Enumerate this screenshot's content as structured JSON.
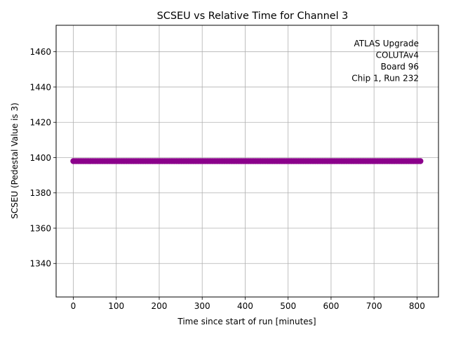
{
  "chart_data": {
    "type": "scatter",
    "title": "SCSEU vs Relative Time for Channel 3",
    "xlabel": "Time since start of run [minutes]",
    "ylabel": "SCSEU (Pedestal Value is 3)",
    "xlim": [
      -40,
      850
    ],
    "ylim": [
      1321,
      1475
    ],
    "xticks": [
      0,
      100,
      200,
      300,
      400,
      500,
      600,
      700,
      800
    ],
    "yticks": [
      1340,
      1360,
      1380,
      1400,
      1420,
      1440,
      1460
    ],
    "grid": true,
    "marker_color": "#8b008b",
    "series": [
      {
        "x_start": 0,
        "x_end": 808,
        "x_step": 4,
        "y": 1398
      }
    ],
    "annotation": [
      "ATLAS Upgrade",
      "COLUTAv4",
      "Board 96",
      "Chip 1, Run 232"
    ],
    "annotation_position": "top-right"
  }
}
